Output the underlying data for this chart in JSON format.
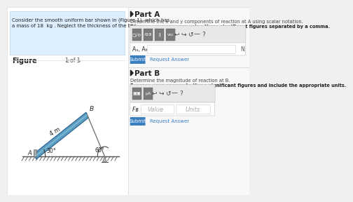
{
  "bg_overall": "#f0f0f0",
  "bg_left_panel": "#ffffff",
  "bg_right_panel": "#ffffff",
  "bg_problem_box": "#ddeeff",
  "bg_figure_area": "#ffffff",
  "problem_text_line1": "Consider the smooth uniform bar shown in (Figure 1), which has",
  "problem_text_line2": "a mass of 18  kg . Neglect the thickness of the bar.",
  "figure_label": "Figure",
  "figure_nav": "1 of 1",
  "bar_label": "4 m",
  "point_a": "A",
  "point_b": "B",
  "angle1": "30°",
  "angle2": "60°",
  "part_a_title": "Part A",
  "part_a_bullet": "▼",
  "part_a_q1": "Determine the x and y components of reaction at A using scalar notation.",
  "part_a_q2": "Express your answers using three significant figures separated by a comma.",
  "part_a_label": "Aₓ, Aₕ =",
  "part_a_unit": "N",
  "part_b_title": "Part B",
  "part_b_q1": "Determine the magnitude of reaction at B.",
  "part_b_q2": "Express your answer to three significant figures and include the appropriate units.",
  "part_b_label": "Fʙ =",
  "submit_color": "#3a7fc1",
  "submit_text_color": "#ffffff",
  "request_color": "#3a7fc1",
  "submit_text": "Submit",
  "request_text": "Request Answer",
  "value_placeholder": "Value",
  "units_placeholder": "Units",
  "icon_bg_dark": "#7a7a7a",
  "icon_bg_mid": "#9a9a9a",
  "divider_color": "#dddddd",
  "text_dark": "#222222",
  "text_mid": "#555555",
  "text_light": "#aaaaaa",
  "input_border": "#cccccc",
  "toolbar_bg": "#e8e8e8",
  "toolbar_border": "#cccccc",
  "input_box_bg": "#ffffff",
  "panel_border": "#dddddd"
}
